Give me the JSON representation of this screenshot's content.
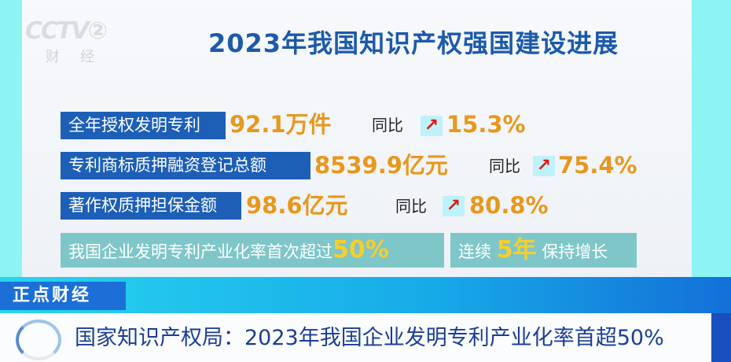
{
  "logo": {
    "channel": "CCTV2",
    "sub": "财经"
  },
  "title": "2023年我国知识产权强国建设进展",
  "rows": [
    {
      "label": "全年授权发明专利",
      "value": "92.1万件",
      "yoy_label": "同比",
      "trend": "arrow-up-right",
      "change": "15.3%"
    },
    {
      "label": "专利商标质押融资登记总额",
      "value": "8539.9亿元",
      "yoy_label": "同比",
      "trend": "arrow-up-right",
      "change": "75.4%"
    },
    {
      "label": "著作权质押担保金额",
      "value": "98.6亿元",
      "yoy_label": "同比",
      "trend": "arrow-up-right",
      "change": "80.8%"
    }
  ],
  "highlights": [
    {
      "text": "我国企业发明专利产业化率首次超过",
      "emph": "50%"
    },
    {
      "pre": "连续",
      "emph": "5年",
      "post": "保持增长"
    }
  ],
  "program": "正点财经",
  "headline": "国家知识产权局：2023年我国企业发明专利产业化率首超50%",
  "colors": {
    "label_bg": "#1d5fb7",
    "number": "#e7981c",
    "arrow": "#e01818",
    "title": "#1c5aaa"
  }
}
